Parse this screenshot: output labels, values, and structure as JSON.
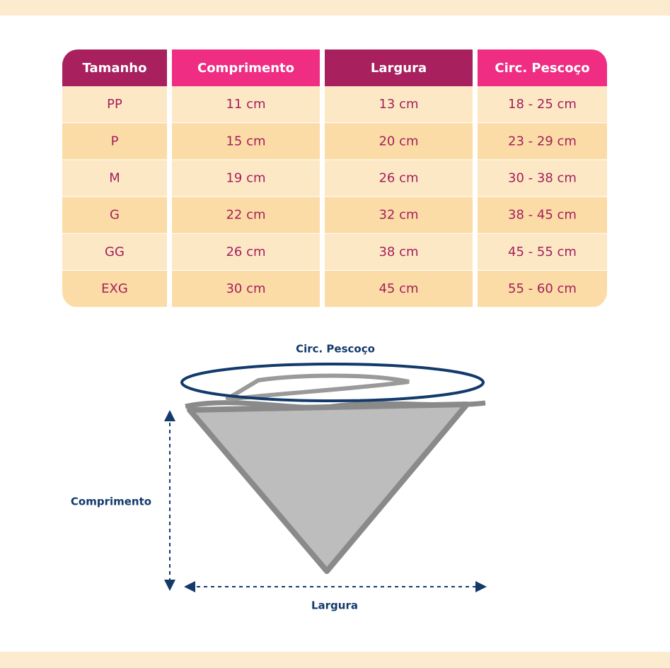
{
  "table": {
    "headers": [
      "Tamanho",
      "Comprimento",
      "Largura",
      "Circ. Pescoço"
    ],
    "rows": [
      [
        "PP",
        "11 cm",
        "13 cm",
        "18 - 25 cm"
      ],
      [
        "P",
        "15 cm",
        "20 cm",
        "23 - 29 cm"
      ],
      [
        "M",
        "19 cm",
        "26 cm",
        "30 - 38 cm"
      ],
      [
        "G",
        "22 cm",
        "32 cm",
        "38 - 45 cm"
      ],
      [
        "GG",
        "26 cm",
        "38 cm",
        "45 - 55 cm"
      ],
      [
        "EXG",
        "30 cm",
        "45 cm",
        "55 - 60 cm"
      ]
    ]
  },
  "diagram": {
    "neck_label": "Circ. Pescoço",
    "length_label": "Comprimento",
    "width_label": "Largura"
  }
}
